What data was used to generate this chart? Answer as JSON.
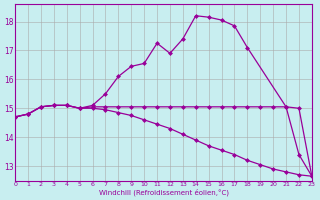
{
  "background_color": "#c8eef0",
  "grid_color": "#aaaaaa",
  "line_color": "#990099",
  "xlim": [
    0,
    23
  ],
  "ylim": [
    12.5,
    18.6
  ],
  "yticks": [
    13,
    14,
    15,
    16,
    17,
    18
  ],
  "xticks": [
    0,
    1,
    2,
    3,
    4,
    5,
    6,
    7,
    8,
    9,
    10,
    11,
    12,
    13,
    14,
    15,
    16,
    17,
    18,
    19,
    20,
    21,
    22,
    23
  ],
  "xlabel": "Windchill (Refroidissement éolien,°C)",
  "s1_x": [
    0,
    1,
    2,
    3,
    4,
    5,
    6,
    7,
    8,
    9,
    10,
    11,
    12,
    13,
    14,
    15,
    16,
    17,
    18,
    21,
    22,
    23
  ],
  "s1_y": [
    14.7,
    14.8,
    15.05,
    15.1,
    15.1,
    15.0,
    15.1,
    15.5,
    16.1,
    16.45,
    16.55,
    17.25,
    16.9,
    17.4,
    18.2,
    18.15,
    18.05,
    17.85,
    17.1,
    15.05,
    13.4,
    12.65
  ],
  "s2_x": [
    0,
    1,
    2,
    3,
    4,
    5,
    6,
    7,
    8,
    9,
    10,
    11,
    12,
    13,
    14,
    15,
    16,
    17,
    18,
    19,
    20,
    21,
    22,
    23
  ],
  "s2_y": [
    14.7,
    14.8,
    15.05,
    15.1,
    15.1,
    15.0,
    15.05,
    15.05,
    15.05,
    15.05,
    15.05,
    15.05,
    15.05,
    15.05,
    15.05,
    15.05,
    15.05,
    15.05,
    15.05,
    15.05,
    15.05,
    15.05,
    15.0,
    12.65
  ],
  "s3_x": [
    0,
    1,
    2,
    3,
    4,
    5,
    6,
    7,
    8,
    9,
    10,
    11,
    12,
    13,
    14,
    15,
    16,
    17,
    18,
    19,
    20,
    21,
    22,
    23
  ],
  "s3_y": [
    14.7,
    14.8,
    15.05,
    15.1,
    15.1,
    15.0,
    15.0,
    14.95,
    14.85,
    14.75,
    14.6,
    14.45,
    14.3,
    14.1,
    13.9,
    13.7,
    13.55,
    13.4,
    13.2,
    13.05,
    12.9,
    12.8,
    12.7,
    12.65
  ]
}
